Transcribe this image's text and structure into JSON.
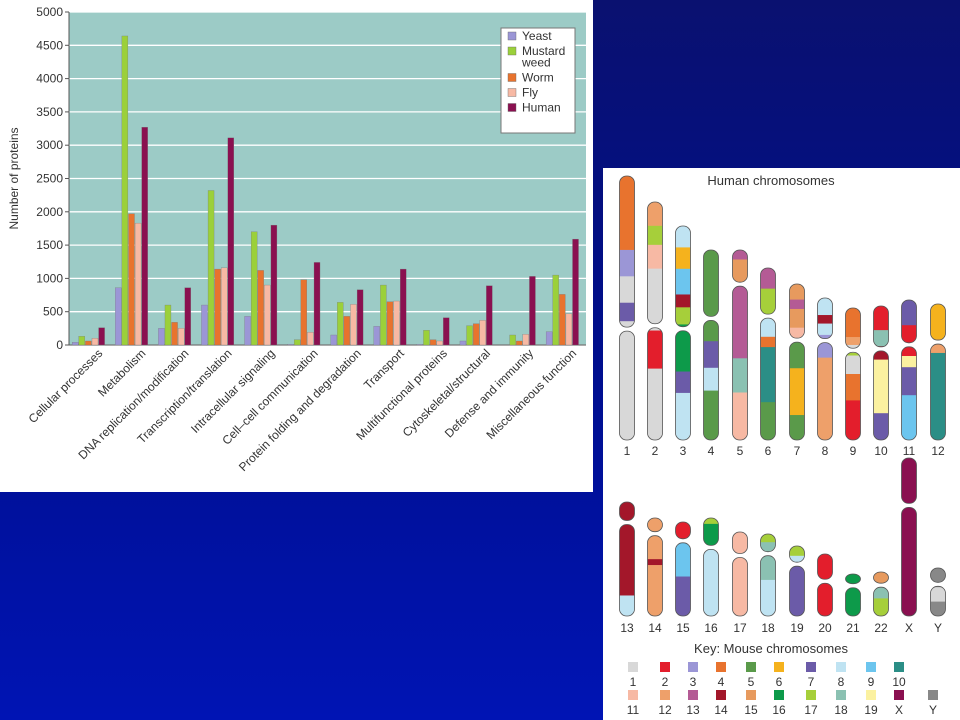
{
  "chart_data": [
    {
      "type": "bar",
      "ylabel": "Number of proteins",
      "ylim": [
        0,
        5000
      ],
      "yticks": [
        0,
        500,
        1000,
        1500,
        2000,
        2500,
        3000,
        3500,
        4000,
        4500,
        5000
      ],
      "grid": true,
      "background_color": "#9ccbc6",
      "legend_position": "top-right",
      "categories": [
        "Cellular processes",
        "Metabolism",
        "DNA replication/modification",
        "Transcription/translation",
        "Intracellular signaling",
        "Cell–cell communication",
        "Protein folding and degradation",
        "Transport",
        "Multifunctional proteins",
        "Cytoskeletal/structural",
        "Defense and immunity",
        "Miscellaneous function"
      ],
      "series": [
        {
          "name": "Yeast",
          "color": "#9b96d6",
          "values": [
            40,
            860,
            250,
            600,
            430,
            10,
            150,
            280,
            10,
            60,
            0,
            200
          ]
        },
        {
          "name": "Mustard\nweed",
          "color": "#9bd03a",
          "values": [
            130,
            4640,
            600,
            2320,
            1700,
            80,
            640,
            900,
            220,
            290,
            150,
            1050
          ]
        },
        {
          "name": "Worm",
          "color": "#e8732e",
          "values": [
            60,
            1970,
            340,
            1140,
            1120,
            980,
            430,
            650,
            80,
            320,
            60,
            760
          ]
        },
        {
          "name": "Fly",
          "color": "#f7b9a4",
          "values": [
            100,
            1830,
            250,
            1160,
            900,
            190,
            610,
            660,
            60,
            370,
            160,
            470
          ]
        },
        {
          "name": "Human",
          "color": "#8a1050",
          "values": [
            260,
            3270,
            860,
            3110,
            1800,
            1240,
            830,
            1140,
            410,
            890,
            1030,
            1590
          ]
        }
      ]
    }
  ],
  "karyotype": {
    "title": "Human chromosomes",
    "row1_labels": [
      "1",
      "2",
      "3",
      "4",
      "5",
      "6",
      "7",
      "8",
      "9",
      "10",
      "11",
      "12"
    ],
    "row2_labels": [
      "13",
      "14",
      "15",
      "16",
      "17",
      "18",
      "19",
      "20",
      "21",
      "22",
      "X",
      "Y"
    ],
    "key_title": "Key: Mouse chromosomes",
    "key": [
      {
        "label": "1",
        "color": "#d8d8d8"
      },
      {
        "label": "2",
        "color": "#e31e2c"
      },
      {
        "label": "3",
        "color": "#9b96d6"
      },
      {
        "label": "4",
        "color": "#e8732e"
      },
      {
        "label": "5",
        "color": "#5a9a4a"
      },
      {
        "label": "6",
        "color": "#f5b21d"
      },
      {
        "label": "7",
        "color": "#6b5ba8"
      },
      {
        "label": "8",
        "color": "#bfe3f2"
      },
      {
        "label": "9",
        "color": "#6cc5ee"
      },
      {
        "label": "10",
        "color": "#2b8e86"
      },
      {
        "label": "11",
        "color": "#f7b9a4"
      },
      {
        "label": "12",
        "color": "#eea06a"
      },
      {
        "label": "13",
        "color": "#b45b95"
      },
      {
        "label": "14",
        "color": "#a3172a"
      },
      {
        "label": "15",
        "color": "#e79a5e"
      },
      {
        "label": "16",
        "color": "#0d9a4a"
      },
      {
        "label": "17",
        "color": "#a6cf3a"
      },
      {
        "label": "18",
        "color": "#8bc1b2"
      },
      {
        "label": "19",
        "color": "#fbf1a0"
      },
      {
        "label": "X",
        "color": "#8a1050"
      },
      {
        "label": "Y",
        "color": "#888888"
      }
    ]
  }
}
